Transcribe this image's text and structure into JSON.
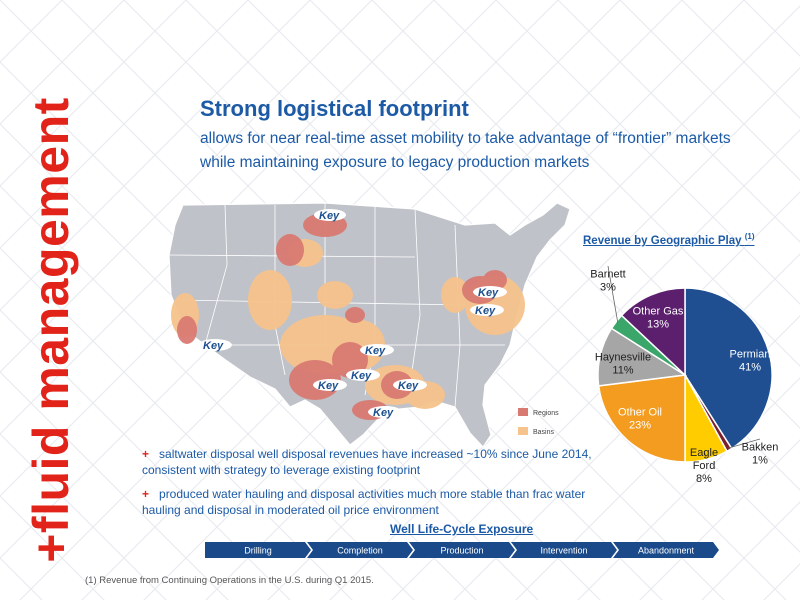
{
  "side_label": "+fluid management",
  "headline": {
    "title": "Strong logistical footprint",
    "subtitle": "allows for near real-time asset mobility to take advantage of “frontier” markets while maintaining exposure to legacy production markets"
  },
  "map": {
    "logo_text": "Key",
    "legend": [
      {
        "label": "Regions",
        "color": "#d97a72"
      },
      {
        "label": "Basins",
        "color": "#f6c38c"
      }
    ]
  },
  "pie_title": "Revenue by Geographic Play",
  "pie_title_note": "(1)",
  "chart_data": {
    "type": "pie",
    "title": "Revenue by Geographic Play",
    "unit": "%",
    "slices": [
      {
        "name": "Permian",
        "value": 41,
        "label": "41%",
        "color": "#1f4f91"
      },
      {
        "name": "Bakken",
        "value": 1,
        "label": "1%",
        "color": "#7a1f2b"
      },
      {
        "name": "Eagle Ford",
        "value": 8,
        "label": "8%",
        "color": "#ffcc00"
      },
      {
        "name": "Other Oil",
        "value": 23,
        "label": "23%",
        "color": "#f39c1f"
      },
      {
        "name": "Haynesville",
        "value": 11,
        "label": "11%",
        "color": "#a6a6a6"
      },
      {
        "name": "Barnett",
        "value": 3,
        "label": "3%",
        "color": "#3aa66a"
      },
      {
        "name": "Other Gas",
        "value": 13,
        "label": "13%",
        "color": "#5c1f6e"
      }
    ]
  },
  "bullets": [
    "saltwater disposal well disposal revenues have increased ~10% since June 2014, consistent with strategy to leverage existing footprint",
    "produced water hauling and disposal activities much more stable than frac water hauling and disposal in moderated oil price environment"
  ],
  "bullet_marker": "+",
  "lifecycle": {
    "title": "Well Life-Cycle Exposure",
    "stages": [
      "Drilling",
      "Completion",
      "Production",
      "Intervention",
      "Abandonment"
    ]
  },
  "footnote": "(1) Revenue from Continuing Operations in the U.S. during Q1 2015."
}
